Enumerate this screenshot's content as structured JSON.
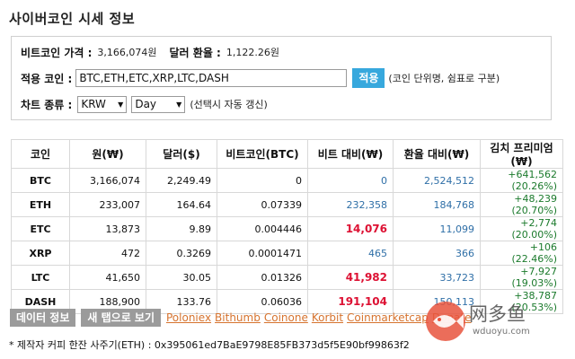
{
  "title": "사이버코인 시세 정보",
  "settings": {
    "btc_price_label": "비트코인 가격 :",
    "btc_price_value": "3,166,074원",
    "exchange_label": "달러 환율 :",
    "exchange_value": "1,122.26원",
    "coins_label": "적용 코인 :",
    "coins_value": "BTC,ETH,ETC,XRP,LTC,DASH",
    "apply_label": "적용",
    "coins_hint": "(코인 단위명, 쉼표로 구분)",
    "chart_label": "차트 종류 :",
    "currency_select": "KRW",
    "period_select": "Day",
    "chart_hint": "(선택시 자동 갱신)"
  },
  "table": {
    "headers": [
      "코인",
      "원(₩)",
      "달러($)",
      "비트코인(BTC)",
      "비트 대비(₩)",
      "환율 대비(₩)",
      "김치 프리미엄(₩)"
    ],
    "rows": [
      {
        "coin": "BTC",
        "krw": "3,166,074",
        "usd": "2,249.49",
        "btc": "0",
        "vs_btc": "0",
        "vs_fx": "2,524,512",
        "premium": "+641,562 (20.26%)",
        "vs_btc_style": "blue"
      },
      {
        "coin": "ETH",
        "krw": "233,007",
        "usd": "164.64",
        "btc": "0.07339",
        "vs_btc": "232,358",
        "vs_fx": "184,768",
        "premium": "+48,239 (20.70%)",
        "vs_btc_style": "blue"
      },
      {
        "coin": "ETC",
        "krw": "13,873",
        "usd": "9.89",
        "btc": "0.004446",
        "vs_btc": "14,076",
        "vs_fx": "11,099",
        "premium": "+2,774 (20.00%)",
        "vs_btc_style": "red"
      },
      {
        "coin": "XRP",
        "krw": "472",
        "usd": "0.3269",
        "btc": "0.0001471",
        "vs_btc": "465",
        "vs_fx": "366",
        "premium": "+106 (22.46%)",
        "vs_btc_style": "blue"
      },
      {
        "coin": "LTC",
        "krw": "41,650",
        "usd": "30.05",
        "btc": "0.01326",
        "vs_btc": "41,982",
        "vs_fx": "33,723",
        "premium": "+7,927 (19.03%)",
        "vs_btc_style": "red"
      },
      {
        "coin": "DASH",
        "krw": "188,900",
        "usd": "133.76",
        "btc": "0.06036",
        "vs_btc": "191,104",
        "vs_fx": "150,113",
        "premium": "+38,787 (20.53%)",
        "vs_btc_style": "red"
      }
    ]
  },
  "footer": {
    "data_info_label": "데이터 정보",
    "new_tab_label": "새 탭으로 보기",
    "links": [
      "Poloniex",
      "Bithumb",
      "Coinone",
      "Korbit",
      "Coinmarketcap",
      "Donate"
    ],
    "donate_text": "* 제작자 커피 한잔 사주기(ETH) : 0x395061ed7BaE9798E85FB373d5f5E90bf99863f2"
  },
  "watermark": {
    "name": "网多鱼",
    "url": "wduoyu.com"
  },
  "colors": {
    "accent": "#37a8dd",
    "link": "#d6732e",
    "up_red": "#dd1133",
    "blue": "#2f6fa7",
    "green": "#1b7a2c",
    "gray_button": "#9b9b9b"
  }
}
